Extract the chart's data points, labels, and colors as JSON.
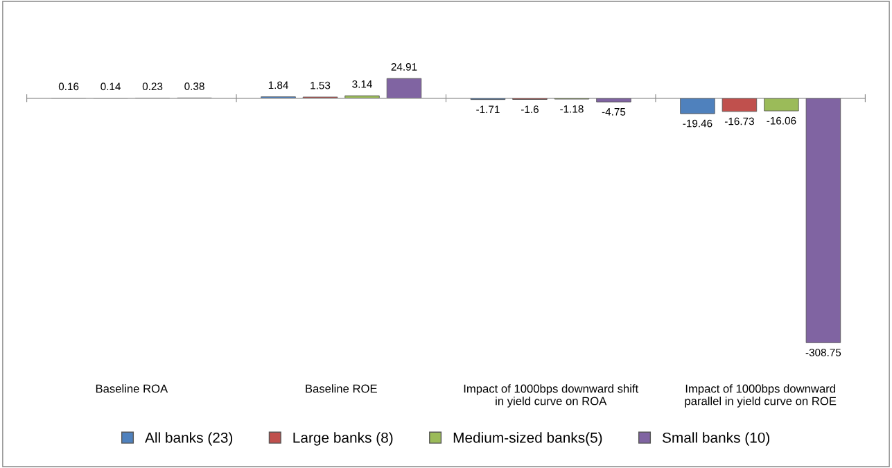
{
  "chart_data": {
    "type": "bar",
    "categories": [
      "Baseline ROA",
      "Baseline ROE",
      "Impact of 1000bps downward shift in yield curve on ROA",
      "Impact of 1000bps downward parallel in yield curve on ROE"
    ],
    "series": [
      {
        "name": "All banks (23)",
        "color": "#4f81bd",
        "values": [
          0.16,
          1.84,
          -1.71,
          -19.46
        ]
      },
      {
        "name": "Large banks (8)",
        "color": "#c0504d",
        "values": [
          0.14,
          1.53,
          -1.6,
          -16.73
        ]
      },
      {
        "name": "Medium-sized banks(5)",
        "color": "#9bbb59",
        "values": [
          0.23,
          3.14,
          -1.18,
          -16.06
        ]
      },
      {
        "name": "Small banks (10)",
        "color": "#8064a2",
        "values": [
          0.38,
          24.91,
          -4.75,
          -308.75
        ]
      }
    ],
    "data_labels": true,
    "legend": "bottom",
    "grid": false
  }
}
